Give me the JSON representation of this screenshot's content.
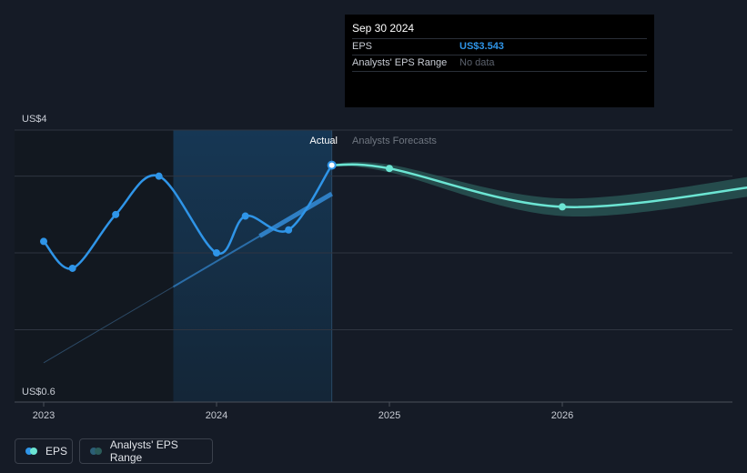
{
  "tooltip": {
    "date": "Sep 30 2024",
    "rows": [
      {
        "label": "EPS",
        "value": "US$3.543"
      },
      {
        "label": "Analysts' EPS Range",
        "value": "No data"
      }
    ]
  },
  "labels": {
    "actual": "Actual",
    "forecast": "Analysts Forecasts"
  },
  "legend": {
    "eps": "EPS",
    "range": "Analysts' EPS Range"
  },
  "colors": {
    "background": "#151b26",
    "eps_actual": "#2f95e8",
    "eps_forecast": "#6ce5d3",
    "range_band": "#2b5c5a",
    "highlight": "#163754"
  },
  "chart_data": {
    "type": "line",
    "x_axis": {
      "ticks": [
        "2023",
        "2024",
        "2025",
        "2026"
      ],
      "range": [
        "2022-11",
        "2027-03"
      ]
    },
    "y_axis": {
      "ticks": [
        "US$0.6",
        "US$4"
      ],
      "min": 0.6,
      "max": 4.0
    },
    "series": [
      {
        "name": "EPS",
        "style": "actual",
        "points": [
          {
            "x": "2023-01",
            "y": 2.55
          },
          {
            "x": "2023-03",
            "y": 2.2
          },
          {
            "x": "2023-06",
            "y": 2.9
          },
          {
            "x": "2023-09",
            "y": 3.4
          },
          {
            "x": "2024-01",
            "y": 2.4
          },
          {
            "x": "2024-03",
            "y": 2.88
          },
          {
            "x": "2024-06",
            "y": 2.7
          },
          {
            "x": "2024-09",
            "y": 3.543
          }
        ]
      },
      {
        "name": "Analysts' EPS forecast",
        "style": "forecast",
        "points": [
          {
            "x": "2024-09",
            "y": 3.543
          },
          {
            "x": "2025-01",
            "y": 3.5
          },
          {
            "x": "2026-01",
            "y": 3.0
          },
          {
            "x": "2027-03",
            "y": 3.28
          }
        ],
        "range_low": [
          3.53,
          3.45,
          2.88,
          3.16
        ],
        "range_high": [
          3.56,
          3.55,
          3.11,
          3.42
        ]
      },
      {
        "name": "EPS trend",
        "style": "trend",
        "points": [
          {
            "x": "2023-01",
            "y": 0.97
          },
          {
            "x": "2024-09",
            "y": 3.17
          }
        ]
      }
    ]
  }
}
